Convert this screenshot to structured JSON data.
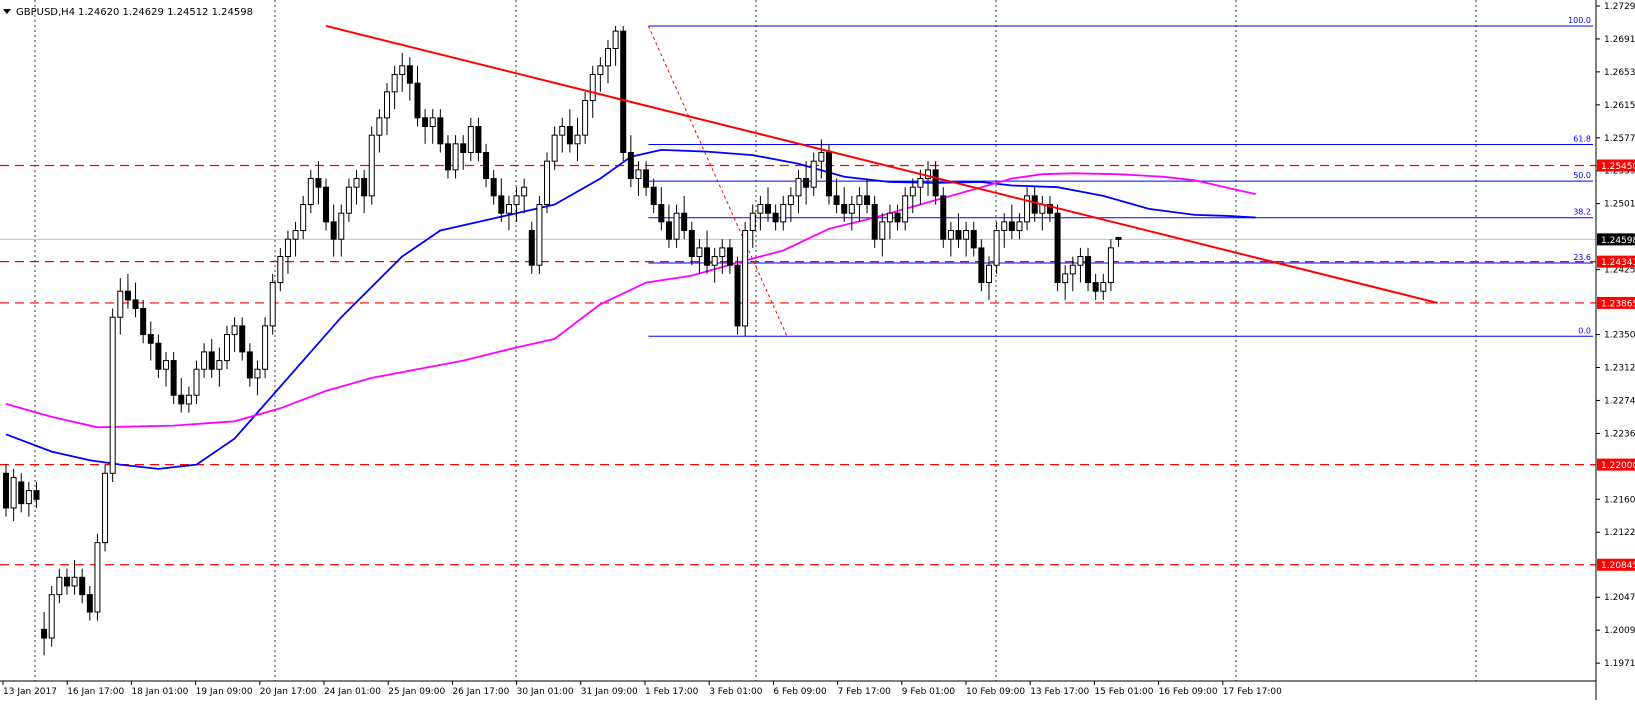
{
  "header": {
    "symbol_label": "GBPUSD,H4",
    "ohlc_label": "1.24620 1.24629 1.24512 1.24598"
  },
  "chart_data": {
    "type": "candlestick",
    "symbol": "GBPUSD",
    "timeframe": "H4",
    "ohlc": {
      "open": 1.2462,
      "high": 1.24629,
      "low": 1.24512,
      "close": 1.24598
    },
    "ylim": [
      1.197,
      1.2729
    ],
    "grid": "vertical dotted lines at day separators",
    "y_ticks": [
      "1.27290",
      "1.26910",
      "1.26530",
      "1.26150",
      "1.25770",
      "1.25390",
      "1.25010",
      "1.24250",
      "1.23500",
      "1.23120",
      "1.22740",
      "1.22360",
      "1.21600",
      "1.21220",
      "1.20470",
      "1.20090",
      "1.19710"
    ],
    "x_ticks": [
      "13 Jan 2017",
      "16 Jan 17:00",
      "18 Jan 01:00",
      "19 Jan 09:00",
      "20 Jan 17:00",
      "24 Jan 01:00",
      "25 Jan 09:00",
      "26 Jan 17:00",
      "30 Jan 01:00",
      "31 Jan 09:00",
      "1 Feb 17:00",
      "3 Feb 01:00",
      "6 Feb 09:00",
      "7 Feb 17:00",
      "9 Feb 01:00",
      "10 Feb 09:00",
      "13 Feb 17:00",
      "15 Feb 01:00",
      "16 Feb 09:00",
      "17 Feb 17:00"
    ],
    "current_price": "1.24598",
    "horizontal_levels": [
      {
        "value": 1.2545,
        "label": "1.25450",
        "style": "dashed",
        "color": "#ff0000"
      },
      {
        "value": 1.24341,
        "label": "1.24341",
        "style": "dashed",
        "color": "#ff0000"
      },
      {
        "value": 1.23865,
        "label": "1.23865",
        "style": "dashed",
        "color": "#ff0000"
      },
      {
        "value": 1.22,
        "label": "1.22000",
        "style": "dashed",
        "color": "#ff0000"
      },
      {
        "value": 1.20845,
        "label": "1.20845",
        "style": "dashed",
        "color": "#ff0000"
      }
    ],
    "fibonacci": {
      "high": 1.2706,
      "low": 1.2348,
      "levels": [
        {
          "ratio": 100.0,
          "label": "100.0",
          "value": 1.2706
        },
        {
          "ratio": 61.8,
          "label": "61.8",
          "value": 1.25693
        },
        {
          "ratio": 50.0,
          "label": "50.0",
          "value": 1.2527
        },
        {
          "ratio": 38.2,
          "label": "38.2",
          "value": 1.24848
        },
        {
          "ratio": 23.6,
          "label": "23.6",
          "value": 1.24325
        },
        {
          "ratio": 0.0,
          "label": "0.0",
          "value": 1.2348
        }
      ]
    },
    "trendline": {
      "from": [
        42,
        1.2706
      ],
      "to": [
        180,
        1.23865
      ],
      "color": "#ff0000"
    },
    "moving_averages": [
      {
        "color": "#0000ff",
        "values": [
          [
            0,
            1.2235
          ],
          [
            6,
            1.2215
          ],
          [
            11,
            1.2205
          ],
          [
            15,
            1.22
          ],
          [
            20,
            1.2195
          ],
          [
            25,
            1.22
          ],
          [
            30,
            1.223
          ],
          [
            36,
            1.229
          ],
          [
            44,
            1.237
          ],
          [
            52,
            1.244
          ],
          [
            57,
            1.247
          ],
          [
            62,
            1.248
          ],
          [
            67,
            1.249
          ],
          [
            72,
            1.25
          ],
          [
            78,
            1.253
          ],
          [
            82,
            1.2555
          ],
          [
            86,
            1.2563
          ],
          [
            92,
            1.2561
          ],
          [
            98,
            1.2557
          ],
          [
            104,
            1.2547
          ],
          [
            110,
            1.2532
          ],
          [
            116,
            1.2526
          ],
          [
            122,
            1.2525
          ],
          [
            128,
            1.2526
          ],
          [
            132,
            1.2522
          ],
          [
            138,
            1.252
          ],
          [
            144,
            1.251
          ],
          [
            150,
            1.2495
          ],
          [
            156,
            1.2488
          ],
          [
            160,
            1.2487
          ],
          [
            164,
            1.2485
          ]
        ]
      },
      {
        "color": "#ff00ff",
        "values": [
          [
            0,
            1.227
          ],
          [
            6,
            1.2255
          ],
          [
            12,
            1.2243
          ],
          [
            22,
            1.2245
          ],
          [
            30,
            1.225
          ],
          [
            36,
            1.2265
          ],
          [
            42,
            1.2285
          ],
          [
            48,
            1.23
          ],
          [
            54,
            1.231
          ],
          [
            60,
            1.232
          ],
          [
            66,
            1.2333
          ],
          [
            72,
            1.2345
          ],
          [
            78,
            1.2385
          ],
          [
            84,
            1.241
          ],
          [
            90,
            1.2418
          ],
          [
            96,
            1.2433
          ],
          [
            102,
            1.2447
          ],
          [
            108,
            1.2472
          ],
          [
            114,
            1.2485
          ],
          [
            120,
            1.25
          ],
          [
            124,
            1.251
          ],
          [
            128,
            1.252
          ],
          [
            132,
            1.253
          ],
          [
            136,
            1.2535
          ],
          [
            140,
            1.2536
          ],
          [
            146,
            1.2535
          ],
          [
            152,
            1.2532
          ],
          [
            156,
            1.2528
          ],
          [
            160,
            1.252
          ],
          [
            164,
            1.2512
          ]
        ]
      }
    ],
    "candles": [
      [
        1.219,
        1.22,
        1.214,
        1.215
      ],
      [
        1.215,
        1.2195,
        1.2135,
        1.2185
      ],
      [
        1.218,
        1.219,
        1.2145,
        1.2155
      ],
      [
        1.2155,
        1.218,
        1.214,
        1.217
      ],
      [
        1.217,
        1.218,
        1.215,
        1.216
      ],
      [
        1.201,
        1.203,
        1.198,
        1.2
      ],
      [
        1.2,
        1.206,
        1.199,
        1.205
      ],
      [
        1.205,
        1.208,
        1.204,
        1.207
      ],
      [
        1.207,
        1.208,
        1.205,
        1.206
      ],
      [
        1.206,
        1.209,
        1.205,
        1.207
      ],
      [
        1.207,
        1.208,
        1.204,
        1.205
      ],
      [
        1.205,
        1.206,
        1.202,
        1.203
      ],
      [
        1.203,
        1.212,
        1.202,
        1.211
      ],
      [
        1.211,
        1.22,
        1.21,
        1.219
      ],
      [
        1.219,
        1.238,
        1.218,
        1.237
      ],
      [
        1.237,
        1.2415,
        1.235,
        1.24
      ],
      [
        1.24,
        1.242,
        1.238,
        1.239
      ],
      [
        1.239,
        1.241,
        1.237,
        1.238
      ],
      [
        1.238,
        1.239,
        1.234,
        1.235
      ],
      [
        1.235,
        1.2365,
        1.232,
        1.234
      ],
      [
        1.234,
        1.235,
        1.23,
        1.231
      ],
      [
        1.231,
        1.233,
        1.229,
        1.232
      ],
      [
        1.232,
        1.233,
        1.227,
        1.228
      ],
      [
        1.228,
        1.23,
        1.226,
        1.227
      ],
      [
        1.227,
        1.229,
        1.226,
        1.228
      ],
      [
        1.228,
        1.232,
        1.227,
        1.231
      ],
      [
        1.231,
        1.234,
        1.23,
        1.233
      ],
      [
        1.233,
        1.2345,
        1.23,
        1.231
      ],
      [
        1.231,
        1.2335,
        1.229,
        1.232
      ],
      [
        1.232,
        1.236,
        1.231,
        1.235
      ],
      [
        1.235,
        1.237,
        1.233,
        1.236
      ],
      [
        1.236,
        1.237,
        1.232,
        1.233
      ],
      [
        1.233,
        1.234,
        1.229,
        1.23
      ],
      [
        1.23,
        1.232,
        1.228,
        1.231
      ],
      [
        1.231,
        1.237,
        1.23,
        1.236
      ],
      [
        1.236,
        1.242,
        1.235,
        1.241
      ],
      [
        1.241,
        1.245,
        1.24,
        1.244
      ],
      [
        1.244,
        1.247,
        1.242,
        1.246
      ],
      [
        1.246,
        1.248,
        1.244,
        1.247
      ],
      [
        1.247,
        1.251,
        1.246,
        1.25
      ],
      [
        1.25,
        1.254,
        1.249,
        1.253
      ],
      [
        1.253,
        1.255,
        1.25,
        1.252
      ],
      [
        1.252,
        1.253,
        1.247,
        1.248
      ],
      [
        1.248,
        1.25,
        1.244,
        1.246
      ],
      [
        1.246,
        1.25,
        1.244,
        1.249
      ],
      [
        1.249,
        1.253,
        1.248,
        1.252
      ],
      [
        1.252,
        1.254,
        1.25,
        1.253
      ],
      [
        1.253,
        1.254,
        1.249,
        1.251
      ],
      [
        1.251,
        1.259,
        1.25,
        1.258
      ],
      [
        1.258,
        1.261,
        1.256,
        1.26
      ],
      [
        1.26,
        1.264,
        1.258,
        1.263
      ],
      [
        1.263,
        1.266,
        1.261,
        1.265
      ],
      [
        1.265,
        1.2675,
        1.263,
        1.266
      ],
      [
        1.266,
        1.267,
        1.262,
        1.264
      ],
      [
        1.264,
        1.266,
        1.259,
        1.26
      ],
      [
        1.26,
        1.261,
        1.257,
        1.259
      ],
      [
        1.259,
        1.261,
        1.257,
        1.26
      ],
      [
        1.26,
        1.261,
        1.256,
        1.257
      ],
      [
        1.257,
        1.258,
        1.253,
        1.254
      ],
      [
        1.254,
        1.258,
        1.253,
        1.257
      ],
      [
        1.257,
        1.258,
        1.254,
        1.256
      ],
      [
        1.256,
        1.26,
        1.255,
        1.259
      ],
      [
        1.259,
        1.26,
        1.255,
        1.256
      ],
      [
        1.256,
        1.257,
        1.252,
        1.253
      ],
      [
        1.253,
        1.254,
        1.25,
        1.251
      ],
      [
        1.251,
        1.253,
        1.248,
        1.249
      ],
      [
        1.249,
        1.251,
        1.247,
        1.25
      ],
      [
        1.25,
        1.252,
        1.248,
        1.251
      ],
      [
        1.251,
        1.253,
        1.249,
        1.252
      ],
      [
        1.247,
        1.248,
        1.242,
        1.243
      ],
      [
        1.243,
        1.251,
        1.242,
        1.25
      ],
      [
        1.25,
        1.256,
        1.249,
        1.255
      ],
      [
        1.255,
        1.259,
        1.254,
        1.258
      ],
      [
        1.258,
        1.26,
        1.256,
        1.259
      ],
      [
        1.259,
        1.261,
        1.256,
        1.257
      ],
      [
        1.257,
        1.26,
        1.255,
        1.258
      ],
      [
        1.258,
        1.263,
        1.257,
        1.262
      ],
      [
        1.262,
        1.266,
        1.26,
        1.265
      ],
      [
        1.265,
        1.267,
        1.263,
        1.266
      ],
      [
        1.266,
        1.269,
        1.264,
        1.268
      ],
      [
        1.268,
        1.2706,
        1.266,
        1.27
      ],
      [
        1.27,
        1.2706,
        1.255,
        1.256
      ],
      [
        1.256,
        1.258,
        1.252,
        1.253
      ],
      [
        1.253,
        1.255,
        1.251,
        1.254
      ],
      [
        1.254,
        1.255,
        1.251,
        1.252
      ],
      [
        1.252,
        1.253,
        1.249,
        1.25
      ],
      [
        1.25,
        1.252,
        1.247,
        1.248
      ],
      [
        1.248,
        1.25,
        1.245,
        1.246
      ],
      [
        1.246,
        1.25,
        1.245,
        1.249
      ],
      [
        1.249,
        1.251,
        1.246,
        1.247
      ],
      [
        1.247,
        1.248,
        1.243,
        1.244
      ],
      [
        1.244,
        1.246,
        1.242,
        1.245
      ],
      [
        1.245,
        1.247,
        1.242,
        1.243
      ],
      [
        1.243,
        1.245,
        1.241,
        1.244
      ],
      [
        1.244,
        1.246,
        1.242,
        1.245
      ],
      [
        1.245,
        1.246,
        1.242,
        1.243
      ],
      [
        1.243,
        1.244,
        1.235,
        1.236
      ],
      [
        1.236,
        1.248,
        1.2348,
        1.247
      ],
      [
        1.247,
        1.25,
        1.245,
        1.249
      ],
      [
        1.249,
        1.251,
        1.247,
        1.25
      ],
      [
        1.25,
        1.252,
        1.248,
        1.249
      ],
      [
        1.249,
        1.25,
        1.247,
        1.248
      ],
      [
        1.248,
        1.251,
        1.247,
        1.25
      ],
      [
        1.25,
        1.252,
        1.248,
        1.251
      ],
      [
        1.251,
        1.254,
        1.249,
        1.253
      ],
      [
        1.253,
        1.255,
        1.25,
        1.252
      ],
      [
        1.252,
        1.256,
        1.251,
        1.255
      ],
      [
        1.255,
        1.2575,
        1.253,
        1.256
      ],
      [
        1.256,
        1.257,
        1.25,
        1.251
      ],
      [
        1.251,
        1.253,
        1.249,
        1.25
      ],
      [
        1.25,
        1.252,
        1.248,
        1.249
      ],
      [
        1.249,
        1.251,
        1.247,
        1.25
      ],
      [
        1.25,
        1.252,
        1.248,
        1.251
      ],
      [
        1.251,
        1.253,
        1.249,
        1.25
      ],
      [
        1.25,
        1.251,
        1.245,
        1.246
      ],
      [
        1.246,
        1.249,
        1.244,
        1.248
      ],
      [
        1.248,
        1.25,
        1.246,
        1.249
      ],
      [
        1.249,
        1.25,
        1.247,
        1.248
      ],
      [
        1.248,
        1.252,
        1.247,
        1.251
      ],
      [
        1.251,
        1.253,
        1.249,
        1.252
      ],
      [
        1.252,
        1.254,
        1.25,
        1.253
      ],
      [
        1.253,
        1.255,
        1.251,
        1.254
      ],
      [
        1.254,
        1.255,
        1.25,
        1.251
      ],
      [
        1.251,
        1.252,
        1.245,
        1.246
      ],
      [
        1.246,
        1.248,
        1.244,
        1.247
      ],
      [
        1.247,
        1.249,
        1.245,
        1.246
      ],
      [
        1.246,
        1.248,
        1.244,
        1.247
      ],
      [
        1.247,
        1.248,
        1.244,
        1.245
      ],
      [
        1.245,
        1.246,
        1.24,
        1.241
      ],
      [
        1.241,
        1.244,
        1.239,
        1.243
      ],
      [
        1.243,
        1.248,
        1.242,
        1.247
      ],
      [
        1.247,
        1.249,
        1.245,
        1.248
      ],
      [
        1.248,
        1.25,
        1.246,
        1.247
      ],
      [
        1.247,
        1.249,
        1.246,
        1.248
      ],
      [
        1.248,
        1.252,
        1.247,
        1.251
      ],
      [
        1.251,
        1.252,
        1.248,
        1.249
      ],
      [
        1.249,
        1.251,
        1.247,
        1.25
      ],
      [
        1.25,
        1.251,
        1.248,
        1.249
      ],
      [
        1.249,
        1.25,
        1.24,
        1.241
      ],
      [
        1.241,
        1.243,
        1.239,
        1.242
      ],
      [
        1.242,
        1.244,
        1.24,
        1.243
      ],
      [
        1.243,
        1.245,
        1.241,
        1.244
      ],
      [
        1.244,
        1.245,
        1.24,
        1.241
      ],
      [
        1.241,
        1.242,
        1.239,
        1.24
      ],
      [
        1.24,
        1.242,
        1.239,
        1.241
      ],
      [
        1.241,
        1.246,
        1.24,
        1.245
      ],
      [
        1.2462,
        1.24629,
        1.24512,
        1.24598
      ]
    ]
  }
}
